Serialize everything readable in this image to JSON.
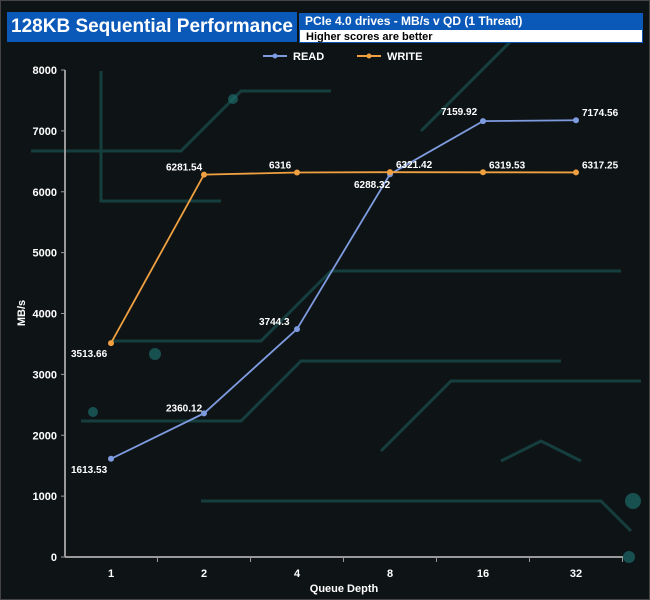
{
  "header": {
    "title": "128KB Sequential Performance",
    "subtitle": "PCIe 4.0 drives - MB/s v QD (1 Thread)",
    "note": "Higher scores are better"
  },
  "chart_data": {
    "type": "line",
    "categories": [
      "1",
      "2",
      "4",
      "8",
      "16",
      "32"
    ],
    "series": [
      {
        "name": "READ",
        "color": "#7f9be0",
        "values": [
          1613.53,
          2360.12,
          3744.3,
          6288.32,
          7159.92,
          7174.56
        ]
      },
      {
        "name": "WRITE",
        "color": "#f0a040",
        "values": [
          3513.66,
          6281.54,
          6316,
          6321.42,
          6319.53,
          6317.25
        ]
      }
    ],
    "data_labels": {
      "READ": [
        "1613.53",
        "2360.12",
        "3744.3",
        "6288.32",
        "7159.92",
        "7174.56"
      ],
      "WRITE": [
        "3513.66",
        "6281.54",
        "6316",
        "6321.42",
        "6319.53",
        "6317.25"
      ]
    },
    "xlabel": "Queue Depth",
    "ylabel": "MB/s",
    "ylim": [
      0,
      8000
    ],
    "yticks": [
      "0",
      "1000",
      "2000",
      "3000",
      "4000",
      "5000",
      "6000",
      "7000",
      "8000"
    ],
    "legend": "top-center",
    "grid": false
  }
}
